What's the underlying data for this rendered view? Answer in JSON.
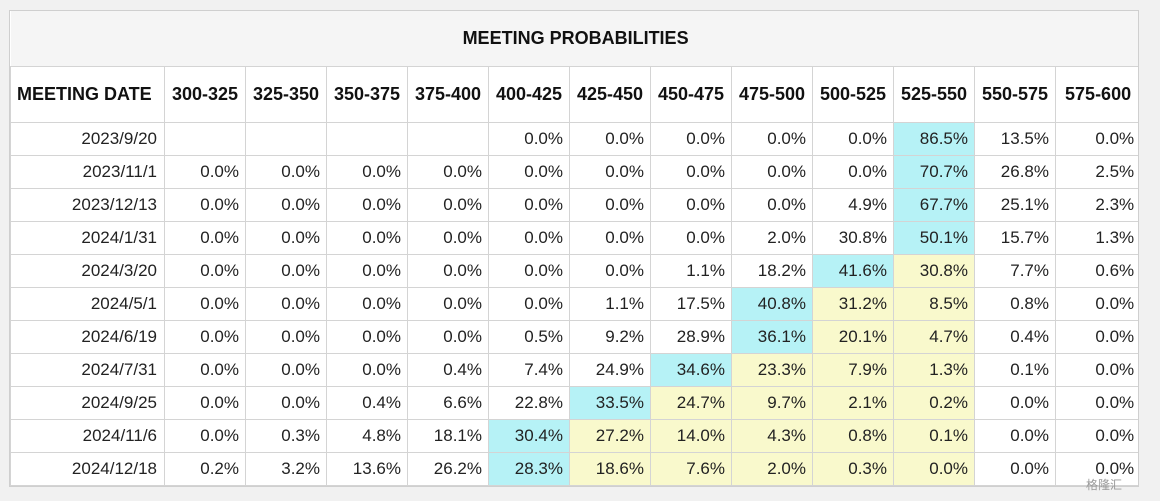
{
  "title": "MEETING PROBABILITIES",
  "date_header": "MEETING DATE",
  "columns": [
    "300-325",
    "325-350",
    "350-375",
    "375-400",
    "400-425",
    "425-450",
    "450-475",
    "475-500",
    "500-525",
    "525-550",
    "550-575",
    "575-600"
  ],
  "rows": [
    {
      "date": "2023/9/20",
      "values": [
        "",
        "",
        "",
        "",
        "0.0%",
        "0.0%",
        "0.0%",
        "0.0%",
        "0.0%",
        "86.5%",
        "13.5%",
        "0.0%"
      ],
      "highlight": [
        "",
        "",
        "",
        "",
        "",
        "",
        "",
        "",
        "",
        "cyan",
        "",
        ""
      ]
    },
    {
      "date": "2023/11/1",
      "values": [
        "0.0%",
        "0.0%",
        "0.0%",
        "0.0%",
        "0.0%",
        "0.0%",
        "0.0%",
        "0.0%",
        "0.0%",
        "70.7%",
        "26.8%",
        "2.5%"
      ],
      "highlight": [
        "",
        "",
        "",
        "",
        "",
        "",
        "",
        "",
        "",
        "cyan",
        "",
        ""
      ]
    },
    {
      "date": "2023/12/13",
      "values": [
        "0.0%",
        "0.0%",
        "0.0%",
        "0.0%",
        "0.0%",
        "0.0%",
        "0.0%",
        "0.0%",
        "4.9%",
        "67.7%",
        "25.1%",
        "2.3%"
      ],
      "highlight": [
        "",
        "",
        "",
        "",
        "",
        "",
        "",
        "",
        "",
        "cyan",
        "",
        ""
      ]
    },
    {
      "date": "2024/1/31",
      "values": [
        "0.0%",
        "0.0%",
        "0.0%",
        "0.0%",
        "0.0%",
        "0.0%",
        "0.0%",
        "2.0%",
        "30.8%",
        "50.1%",
        "15.7%",
        "1.3%"
      ],
      "highlight": [
        "",
        "",
        "",
        "",
        "",
        "",
        "",
        "",
        "",
        "cyan",
        "",
        ""
      ]
    },
    {
      "date": "2024/3/20",
      "values": [
        "0.0%",
        "0.0%",
        "0.0%",
        "0.0%",
        "0.0%",
        "0.0%",
        "1.1%",
        "18.2%",
        "41.6%",
        "30.8%",
        "7.7%",
        "0.6%"
      ],
      "highlight": [
        "",
        "",
        "",
        "",
        "",
        "",
        "",
        "",
        "cyan",
        "yellow",
        "",
        ""
      ]
    },
    {
      "date": "2024/5/1",
      "values": [
        "0.0%",
        "0.0%",
        "0.0%",
        "0.0%",
        "0.0%",
        "1.1%",
        "17.5%",
        "40.8%",
        "31.2%",
        "8.5%",
        "0.8%",
        "0.0%"
      ],
      "highlight": [
        "",
        "",
        "",
        "",
        "",
        "",
        "",
        "cyan",
        "yellow",
        "yellow",
        "",
        ""
      ]
    },
    {
      "date": "2024/6/19",
      "values": [
        "0.0%",
        "0.0%",
        "0.0%",
        "0.0%",
        "0.5%",
        "9.2%",
        "28.9%",
        "36.1%",
        "20.1%",
        "4.7%",
        "0.4%",
        "0.0%"
      ],
      "highlight": [
        "",
        "",
        "",
        "",
        "",
        "",
        "",
        "cyan",
        "yellow",
        "yellow",
        "",
        ""
      ]
    },
    {
      "date": "2024/7/31",
      "values": [
        "0.0%",
        "0.0%",
        "0.0%",
        "0.4%",
        "7.4%",
        "24.9%",
        "34.6%",
        "23.3%",
        "7.9%",
        "1.3%",
        "0.1%",
        "0.0%"
      ],
      "highlight": [
        "",
        "",
        "",
        "",
        "",
        "",
        "cyan",
        "yellow",
        "yellow",
        "yellow",
        "",
        ""
      ]
    },
    {
      "date": "2024/9/25",
      "values": [
        "0.0%",
        "0.0%",
        "0.4%",
        "6.6%",
        "22.8%",
        "33.5%",
        "24.7%",
        "9.7%",
        "2.1%",
        "0.2%",
        "0.0%",
        "0.0%"
      ],
      "highlight": [
        "",
        "",
        "",
        "",
        "",
        "cyan",
        "yellow",
        "yellow",
        "yellow",
        "yellow",
        "",
        ""
      ]
    },
    {
      "date": "2024/11/6",
      "values": [
        "0.0%",
        "0.3%",
        "4.8%",
        "18.1%",
        "30.4%",
        "27.2%",
        "14.0%",
        "4.3%",
        "0.8%",
        "0.1%",
        "0.0%",
        "0.0%"
      ],
      "highlight": [
        "",
        "",
        "",
        "",
        "cyan",
        "yellow",
        "yellow",
        "yellow",
        "yellow",
        "yellow",
        "",
        ""
      ]
    },
    {
      "date": "2024/12/18",
      "values": [
        "0.2%",
        "3.2%",
        "13.6%",
        "26.2%",
        "28.3%",
        "18.6%",
        "7.6%",
        "2.0%",
        "0.3%",
        "0.0%",
        "0.0%",
        "0.0%"
      ],
      "highlight": [
        "",
        "",
        "",
        "",
        "cyan",
        "yellow",
        "yellow",
        "yellow",
        "yellow",
        "yellow",
        "",
        ""
      ]
    }
  ],
  "colors": {
    "cyan": "#b6f2f6",
    "yellow": "#f9f9cc"
  },
  "watermark": "格隆汇"
}
